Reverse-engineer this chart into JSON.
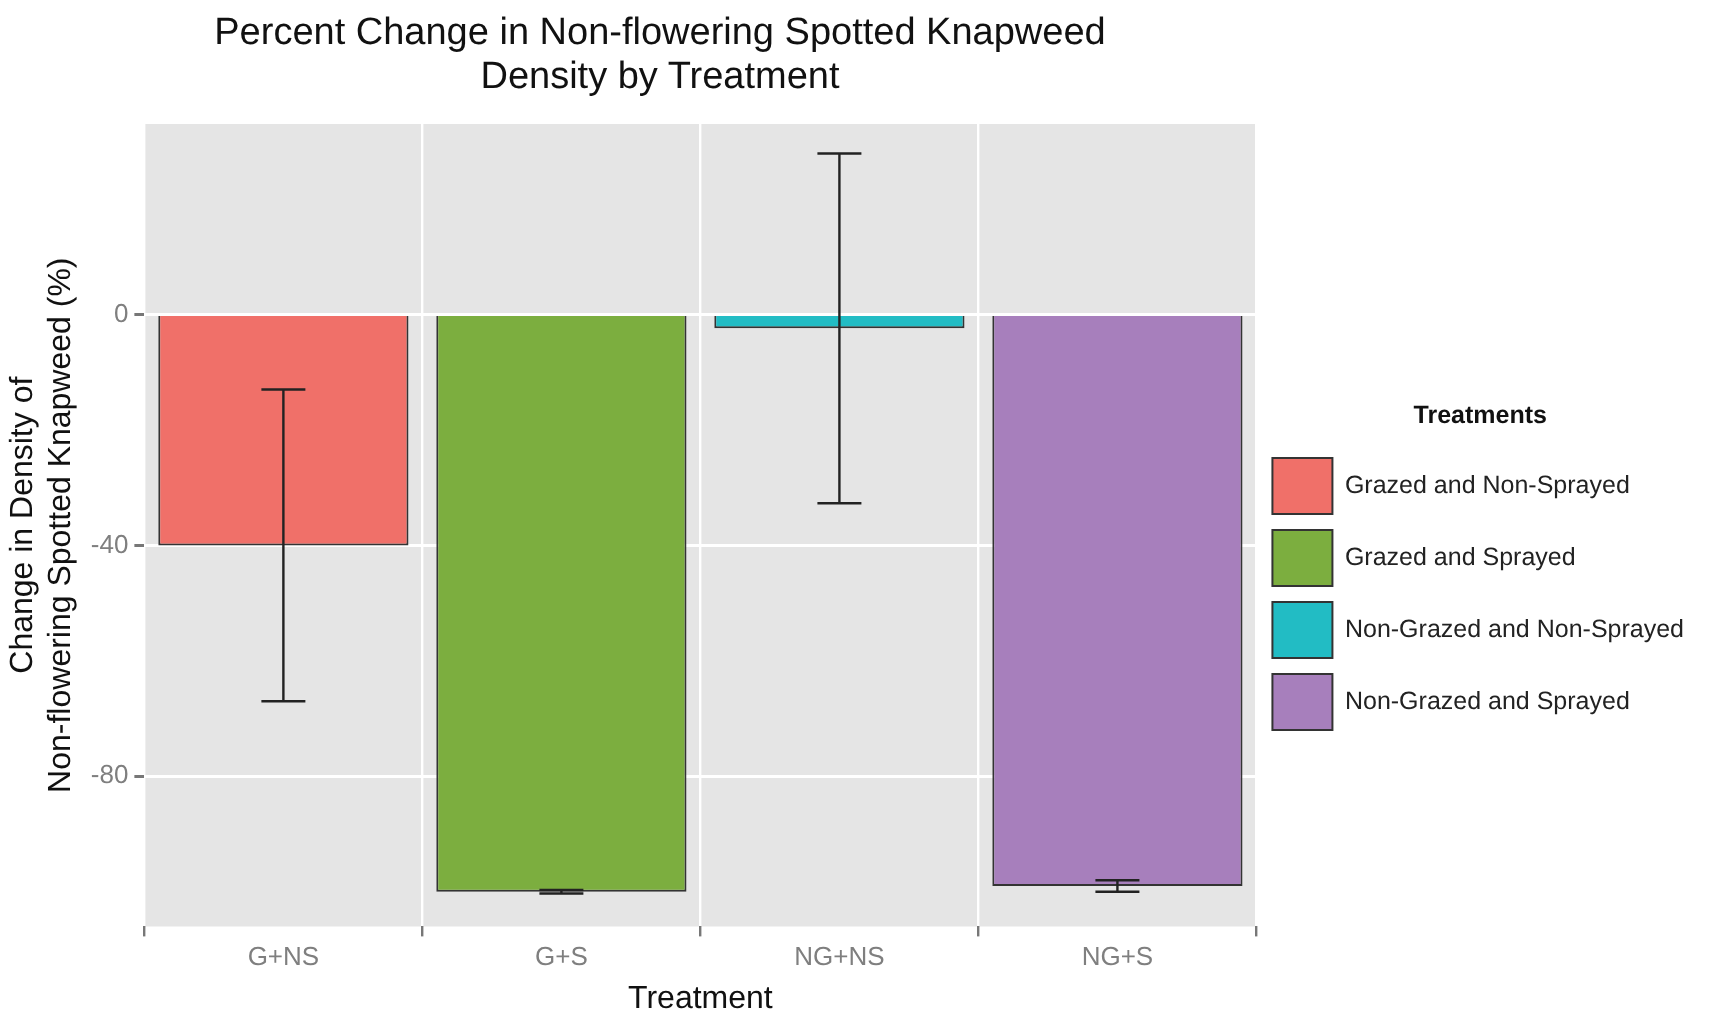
{
  "chart_data": {
    "type": "bar",
    "title": "Percent Change in Non-flowering Spotted Knapweed Density by Treatment",
    "xlabel": "Treatment",
    "ylabel": "Change in Density of Non-flowering Spotted Knapweed (%)",
    "legend_title": "Treatments",
    "categories": [
      "G+NS",
      "G+S",
      "NG+NS",
      "NG+S"
    ],
    "series": [
      {
        "name": "Grazed and Non-Sprayed",
        "color": "#f07069",
        "values": [
          -40,
          null,
          null,
          null
        ],
        "errors": [
          27,
          null,
          null,
          null
        ]
      },
      {
        "name": "Grazed and Sprayed",
        "color": "#7cae3f",
        "values": [
          null,
          -100,
          null,
          null
        ],
        "errors": [
          null,
          0.3,
          null,
          null
        ]
      },
      {
        "name": "Non-Grazed and Non-Sprayed",
        "color": "#22bcc4",
        "values": [
          null,
          null,
          -2.4,
          null
        ],
        "errors": [
          null,
          null,
          30.3,
          null
        ]
      },
      {
        "name": "Non-Grazed and Sprayed",
        "color": "#a77fbc",
        "values": [
          null,
          null,
          null,
          -99
        ],
        "errors": [
          null,
          null,
          null,
          1
        ]
      }
    ],
    "ylim": [
      -106,
      33
    ],
    "yticks": [
      -80,
      -40,
      0
    ],
    "grid": true,
    "legend": "right"
  }
}
